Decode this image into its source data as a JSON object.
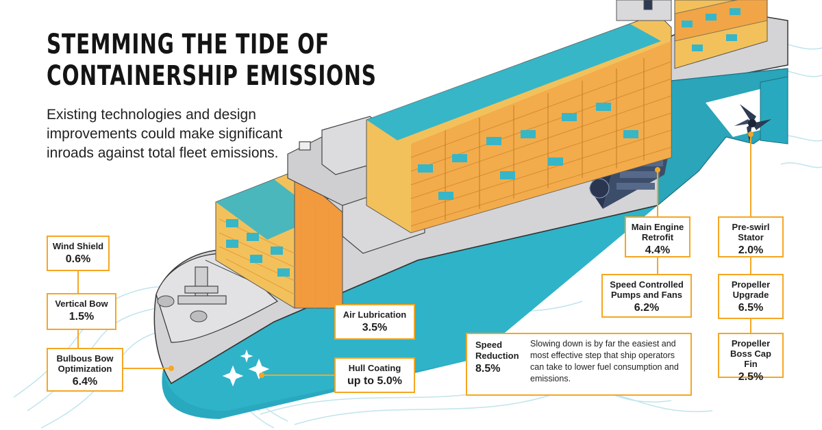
{
  "title_lines": [
    "STEMMING THE TIDE OF",
    "CONTAINERSHIP EMISSIONS"
  ],
  "subtitle": "Existing technologies and design improvements could make significant inroads against total fleet emissions.",
  "callouts": {
    "wind_shield": {
      "label": "Wind Shield",
      "value": "0.6%"
    },
    "vertical_bow": {
      "label": "Vertical Bow",
      "value": "1.5%"
    },
    "bulbous_bow": {
      "label": "Bulbous Bow Optimization",
      "value": "6.4%"
    },
    "air_lubrication": {
      "label": "Air Lubrication",
      "value": "3.5%"
    },
    "hull_coating": {
      "label": "Hull Coating",
      "value": "up to 5.0%"
    },
    "main_engine": {
      "label": "Main Engine Retrofit",
      "value": "4.4%"
    },
    "pumps_fans": {
      "label": "Speed Controlled Pumps and Fans",
      "value": "6.2%"
    },
    "speed_reduction": {
      "label": "Speed Reduction",
      "value": "8.5%",
      "note": "Slowing down is by far the easiest and most effective step that ship operators can take to lower fuel consumption and emissions."
    },
    "pre_swirl": {
      "label": "Pre-swirl Stator",
      "value": "2.0%"
    },
    "propeller_upgrade": {
      "label": "Propeller Upgrade",
      "value": "6.5%"
    },
    "boss_cap": {
      "label": "Propeller Boss Cap Fin",
      "value": "2.5%"
    }
  },
  "colors": {
    "accent": "#f5a623",
    "hull_teal": "#29a9bf",
    "hull_grey": "#cfcfd1",
    "container_yellow": "#f3c15b",
    "container_orange": "#f19a3e",
    "container_teal": "#37b6c7",
    "water_line": "#b8e3ec"
  },
  "icons": [
    "propeller-icon",
    "engine-icon",
    "sparkle-icon",
    "crane-icon"
  ]
}
